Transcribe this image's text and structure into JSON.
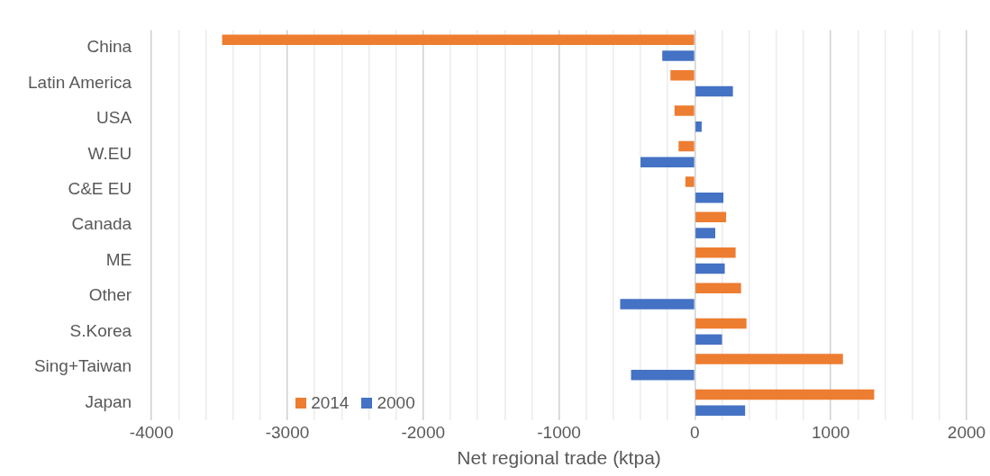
{
  "chart_data": {
    "type": "bar",
    "orientation": "horizontal",
    "xlabel": "Net regional trade (ktpa)",
    "categories": [
      "China",
      "Latin America",
      "USA",
      "W.EU",
      "C&E EU",
      "Canada",
      "ME",
      "Other",
      "S.Korea",
      "Sing+Taiwan",
      "Japan"
    ],
    "series": [
      {
        "name": "2014",
        "color": "#ed7d31",
        "values": [
          -3480,
          -180,
          -150,
          -120,
          -70,
          230,
          300,
          340,
          380,
          1090,
          1320
        ]
      },
      {
        "name": "2000",
        "color": "#4472c4",
        "values": [
          -240,
          280,
          50,
          -400,
          210,
          150,
          220,
          -550,
          200,
          -470,
          370
        ]
      }
    ],
    "xlim": [
      -4000,
      2000
    ],
    "xticks": [
      -4000,
      {
        "value": -3800,
        "label": null
      },
      {
        "value": -3600,
        "label": null
      },
      {
        "value": -3400,
        "label": null
      },
      {
        "value": -3200,
        "label": null
      },
      -3000,
      {
        "value": -2800,
        "label": null
      },
      {
        "value": -2600,
        "label": null
      },
      {
        "value": -2400,
        "label": null
      },
      {
        "value": -2200,
        "label": null
      },
      -2000,
      {
        "value": -1800,
        "label": null
      },
      {
        "value": -1600,
        "label": null
      },
      {
        "value": -1400,
        "label": null
      },
      {
        "value": -1200,
        "label": null
      },
      -1000,
      {
        "value": -800,
        "label": null
      },
      {
        "value": -600,
        "label": null
      },
      {
        "value": -400,
        "label": null
      },
      {
        "value": -200,
        "label": null
      },
      0,
      {
        "value": 200,
        "label": null
      },
      {
        "value": 400,
        "label": null
      },
      {
        "value": 600,
        "label": null
      },
      {
        "value": 800,
        "label": null
      },
      1000,
      {
        "value": 1200,
        "label": null
      },
      {
        "value": 1400,
        "label": null
      },
      {
        "value": 1600,
        "label": null
      },
      {
        "value": 1800,
        "label": null
      },
      2000
    ],
    "grid": "x",
    "legend": "bottom left"
  }
}
